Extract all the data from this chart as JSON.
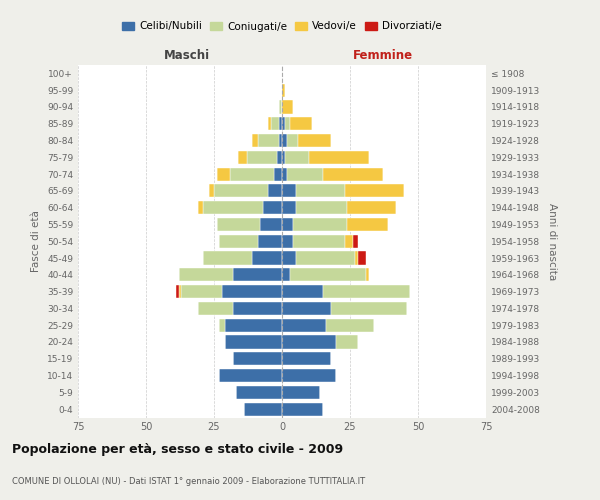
{
  "age_groups": [
    "0-4",
    "5-9",
    "10-14",
    "15-19",
    "20-24",
    "25-29",
    "30-34",
    "35-39",
    "40-44",
    "45-49",
    "50-54",
    "55-59",
    "60-64",
    "65-69",
    "70-74",
    "75-79",
    "80-84",
    "85-89",
    "90-94",
    "95-99",
    "100+"
  ],
  "birth_years": [
    "2004-2008",
    "1999-2003",
    "1994-1998",
    "1989-1993",
    "1984-1988",
    "1979-1983",
    "1974-1978",
    "1969-1973",
    "1964-1968",
    "1959-1963",
    "1954-1958",
    "1949-1953",
    "1944-1948",
    "1939-1943",
    "1934-1938",
    "1929-1933",
    "1924-1928",
    "1919-1923",
    "1914-1918",
    "1909-1913",
    "≤ 1908"
  ],
  "males": {
    "celibi": [
      14,
      17,
      23,
      18,
      21,
      21,
      18,
      22,
      18,
      11,
      9,
      8,
      7,
      5,
      3,
      2,
      1,
      1,
      0,
      0,
      0
    ],
    "coniugati": [
      0,
      0,
      0,
      0,
      0,
      2,
      13,
      15,
      20,
      18,
      14,
      16,
      22,
      20,
      16,
      11,
      8,
      3,
      1,
      0,
      0
    ],
    "vedovi": [
      0,
      0,
      0,
      0,
      0,
      0,
      0,
      1,
      0,
      0,
      0,
      0,
      2,
      2,
      5,
      3,
      2,
      1,
      0,
      0,
      0
    ],
    "divorziati": [
      0,
      0,
      0,
      0,
      0,
      0,
      0,
      1,
      0,
      0,
      0,
      0,
      0,
      0,
      0,
      0,
      0,
      0,
      0,
      0,
      0
    ]
  },
  "females": {
    "nubili": [
      15,
      14,
      20,
      18,
      20,
      16,
      18,
      15,
      3,
      5,
      4,
      4,
      5,
      5,
      2,
      1,
      2,
      1,
      0,
      0,
      0
    ],
    "coniugate": [
      0,
      0,
      0,
      0,
      8,
      18,
      28,
      32,
      28,
      22,
      19,
      20,
      19,
      18,
      13,
      9,
      4,
      2,
      0,
      0,
      0
    ],
    "vedove": [
      0,
      0,
      0,
      0,
      0,
      0,
      0,
      0,
      1,
      1,
      3,
      15,
      18,
      22,
      22,
      22,
      12,
      8,
      4,
      1,
      0
    ],
    "divorziate": [
      0,
      0,
      0,
      0,
      0,
      0,
      0,
      0,
      0,
      3,
      2,
      0,
      0,
      0,
      0,
      0,
      0,
      0,
      0,
      0,
      0
    ]
  },
  "colors": {
    "celibi": "#3d6fa8",
    "coniugati": "#c5d89a",
    "vedovi": "#f5c842",
    "divorziati": "#cc1a14"
  },
  "xlim": 75,
  "title": "Popolazione per età, sesso e stato civile - 2009",
  "subtitle": "COMUNE DI OLLOLAI (NU) - Dati ISTAT 1° gennaio 2009 - Elaborazione TUTTITALIA.IT",
  "xlabel_left": "Maschi",
  "xlabel_right": "Femmine",
  "ylabel_left": "Fasce di età",
  "ylabel_right": "Anni di nascita",
  "legend_labels": [
    "Celibi/Nubili",
    "Coniugati/e",
    "Vedovi/e",
    "Divorziati/e"
  ],
  "bg_color": "#efefea",
  "plot_bg_color": "#ffffff"
}
